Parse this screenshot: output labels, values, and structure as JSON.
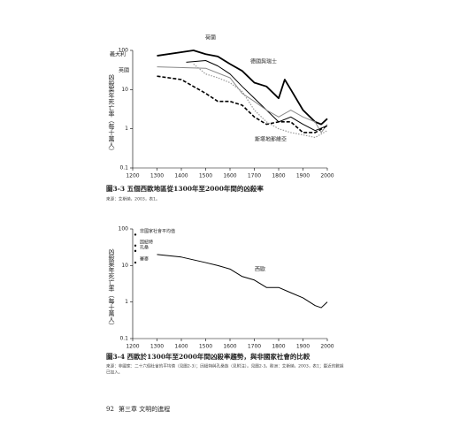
{
  "chart_data": [
    {
      "type": "line",
      "ylabel": "凶殺案年死亡率（每十萬人）",
      "log": true,
      "xlim": [
        1200,
        2000
      ],
      "xticks": [
        1200,
        1300,
        1400,
        1500,
        1600,
        1700,
        1800,
        1900,
        2000
      ],
      "ylim": [
        0.1,
        100
      ],
      "yticks": [
        0.1,
        1,
        10,
        100
      ],
      "caption": "圖3-3 五個西歐地區從1300年至2000年間的凶殺率",
      "source": "來源：艾斯納，2003，表1。",
      "series": [
        {
          "name": "義大利",
          "color": "#000000",
          "style": "thick",
          "x": [
            1300,
            1450,
            1500,
            1550,
            1600,
            1650,
            1700,
            1750,
            1800,
            1825,
            1850,
            1900,
            1950,
            1975,
            2000
          ],
          "values": [
            73,
            100,
            80,
            70,
            45,
            30,
            15,
            12,
            6,
            18,
            10,
            3,
            1.5,
            1.3,
            1.8
          ]
        },
        {
          "name": "荷蘭",
          "color": "#000000",
          "style": "solid",
          "x": [
            1420,
            1500,
            1550,
            1600,
            1650,
            1700,
            1750,
            1800,
            1850,
            1900,
            1950,
            2000
          ],
          "values": [
            50,
            55,
            40,
            25,
            12,
            6,
            3,
            1.5,
            2,
            1.3,
            0.9,
            1.2
          ]
        },
        {
          "name": "德國與瑞士",
          "color": "#888888",
          "style": "solid",
          "x": [
            1300,
            1500,
            1600,
            1650,
            1700,
            1750,
            1800,
            1850,
            1900,
            1950,
            1975,
            2000
          ],
          "values": [
            38,
            35,
            20,
            8,
            5,
            3,
            2,
            3,
            2,
            1.5,
            0.8,
            1.3
          ]
        },
        {
          "name": "英國",
          "color": "#000000",
          "style": "dashed",
          "x": [
            1300,
            1400,
            1500,
            1550,
            1600,
            1650,
            1700,
            1750,
            1800,
            1850,
            1900,
            1950,
            2000
          ],
          "values": [
            22,
            18,
            8,
            5,
            5,
            4,
            2,
            1.3,
            1.5,
            1.5,
            0.8,
            0.8,
            1.2
          ]
        },
        {
          "name": "斯堪地那維亞",
          "color": "#999999",
          "style": "dotted",
          "x": [
            1450,
            1500,
            1550,
            1600,
            1650,
            1700,
            1750,
            1800,
            1850,
            1900,
            1950,
            2000
          ],
          "values": [
            45,
            25,
            20,
            15,
            9,
            3,
            1.5,
            1,
            0.8,
            0.7,
            0.6,
            0.9
          ]
        }
      ]
    },
    {
      "type": "line",
      "ylabel": "凶殺案年死亡率（每十萬人）",
      "log": true,
      "xlim": [
        1200,
        2000
      ],
      "xticks": [
        1200,
        1300,
        1400,
        1500,
        1600,
        1700,
        1800,
        1900,
        2000
      ],
      "ylim": [
        0.1,
        100
      ],
      "yticks": [
        0.1,
        1,
        10,
        100
      ],
      "caption": "圖3-4 西歐於1300年至2000年間凶殺率趨勢，與非國家社會的比較",
      "source": [
        "來源：非國家：二十六個社會的平均值（見圖2-3）；因紐特與孔桑族（見附注）。見圖2-3。歐洲：艾斯納，2003，表1；最近的數據",
        "已加入。"
      ],
      "series": [
        {
          "name": "西歐",
          "color": "#000000",
          "style": "solid",
          "x": [
            1300,
            1400,
            1500,
            1550,
            1600,
            1650,
            1700,
            1750,
            1800,
            1850,
            1900,
            1950,
            1975,
            2000
          ],
          "values": [
            20,
            17,
            12,
            10,
            8,
            5,
            4,
            2.5,
            2.5,
            1.8,
            1.3,
            0.8,
            0.7,
            1
          ]
        }
      ],
      "points": [
        {
          "name": "非國家社會平均值",
          "value": 70
        },
        {
          "name": "因紐特",
          "value": 35
        },
        {
          "name": "孔桑",
          "value": 25
        },
        {
          "name": "賽麥",
          "value": 12
        }
      ]
    }
  ],
  "footer": {
    "page": "92",
    "chapter": "第三章 文明的進程"
  }
}
